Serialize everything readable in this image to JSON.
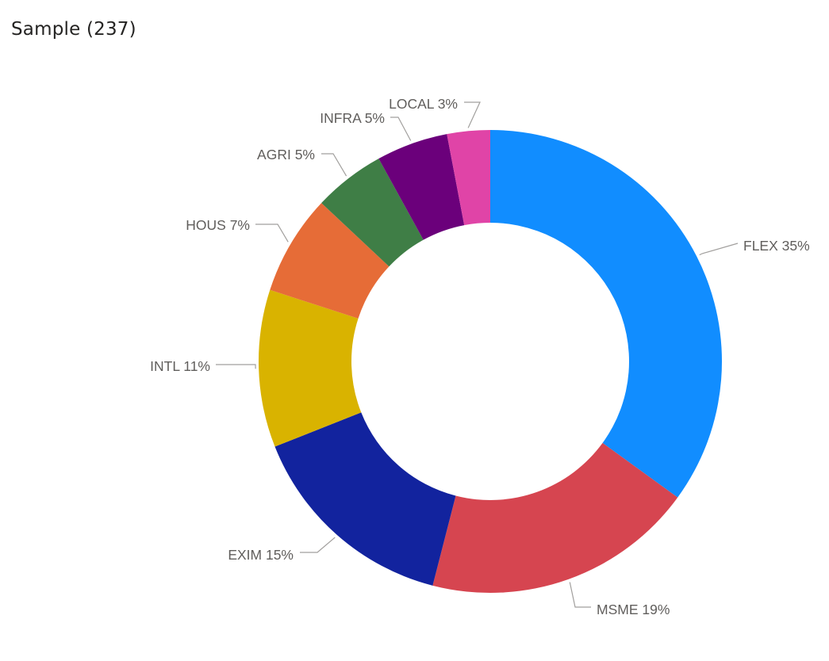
{
  "title": "Sample (237)",
  "chart_data": {
    "type": "donut",
    "slices": [
      {
        "label": "FLEX",
        "pct_label": "35%",
        "value": 35,
        "color": "#118dff"
      },
      {
        "label": "MSME",
        "pct_label": "19%",
        "value": 19,
        "color": "#d64550"
      },
      {
        "label": "EXIM",
        "pct_label": "15%",
        "value": 15,
        "color": "#12239e"
      },
      {
        "label": "INTL",
        "pct_label": "11%",
        "value": 11,
        "color": "#d9b300"
      },
      {
        "label": "HOUS",
        "pct_label": "7%",
        "value": 7,
        "color": "#e66c37"
      },
      {
        "label": "AGRI",
        "pct_label": "5%",
        "value": 5,
        "color": "#3f7e46"
      },
      {
        "label": "INFRA",
        "pct_label": "5%",
        "value": 5,
        "color": "#6b007b"
      },
      {
        "label": "LOCAL",
        "pct_label": "3%",
        "value": 3,
        "color": "#e044a7"
      }
    ]
  }
}
